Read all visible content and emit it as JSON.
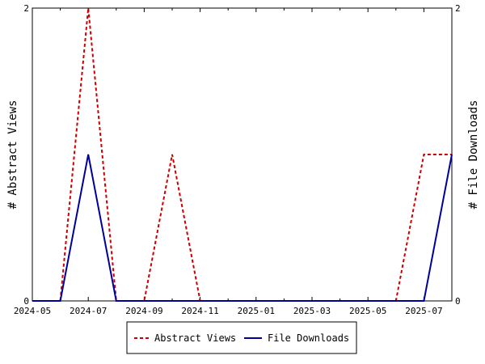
{
  "chart_data": {
    "type": "line",
    "x": [
      "2024-05",
      "2024-06",
      "2024-07",
      "2024-08",
      "2024-09",
      "2024-10",
      "2024-11",
      "2024-12",
      "2025-01",
      "2025-02",
      "2025-03",
      "2025-04",
      "2025-05",
      "2025-06",
      "2025-07",
      "2025-08"
    ],
    "x_tick_labels": [
      "2024-05",
      "2024-07",
      "2024-09",
      "2024-11",
      "2025-01",
      "2025-03",
      "2025-05",
      "2025-07"
    ],
    "series": [
      {
        "name": "Abstract Views",
        "axis": "left",
        "color": "#cc0000",
        "style": "dashed",
        "values": [
          0,
          0,
          2,
          0,
          0,
          1,
          0,
          0,
          0,
          0,
          0,
          0,
          0,
          0,
          1,
          1
        ]
      },
      {
        "name": "File Downloads",
        "axis": "right",
        "color": "#000099",
        "style": "solid",
        "values": [
          0,
          0,
          1,
          0,
          0,
          0,
          0,
          0,
          0,
          0,
          0,
          0,
          0,
          0,
          0,
          1
        ]
      }
    ],
    "ylabel_left": "# Abstract Views",
    "ylabel_right": "# File Downloads",
    "ylim_left": [
      0,
      2
    ],
    "ylim_right": [
      0,
      2
    ],
    "y_tick_labels_left": [
      "0",
      "2"
    ],
    "y_tick_labels_right": [
      "0",
      "2"
    ],
    "grid": false,
    "legend_position": "bottom-center"
  }
}
